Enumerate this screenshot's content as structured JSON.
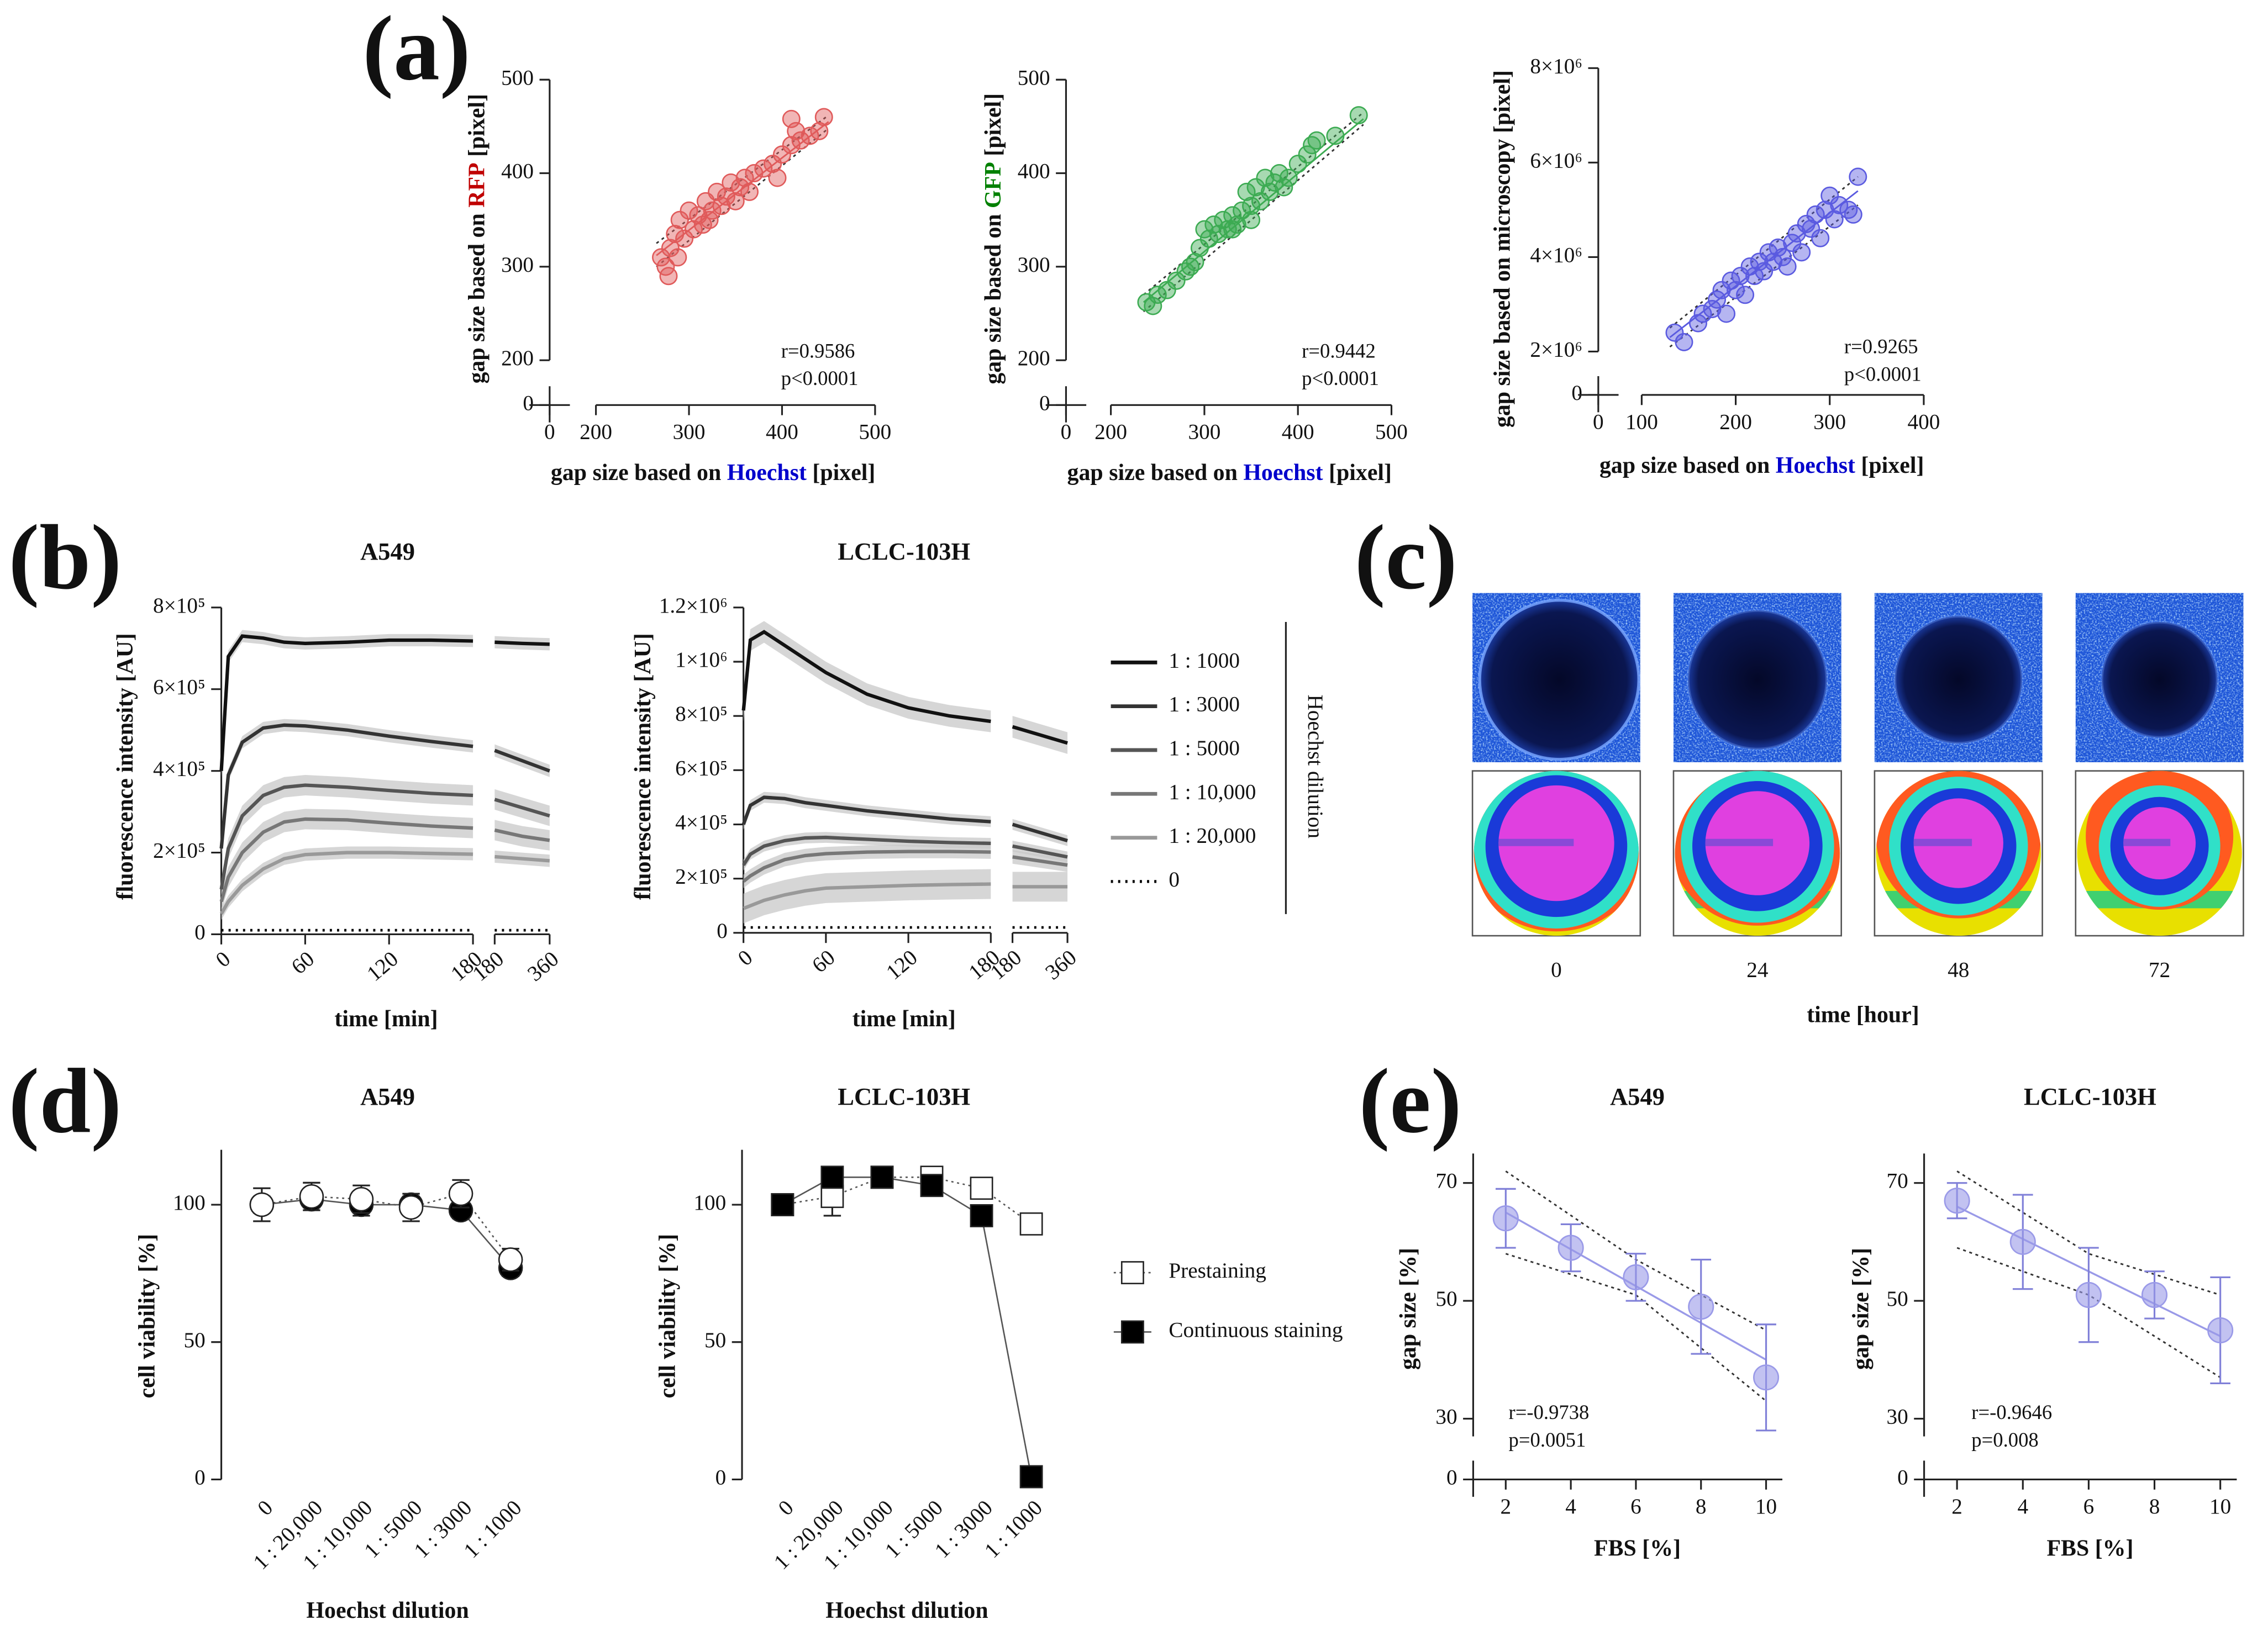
{
  "panel_labels": [
    "(a)",
    "(b)",
    "(c)",
    "(d)",
    "(e)"
  ],
  "panel_c": {
    "timepoints": [
      0,
      24,
      48,
      72
    ],
    "xlabel": "time [hour]"
  },
  "chart_data": [
    {
      "type": "scatter",
      "ylabel": [
        {
          "text": "gap size based on "
        },
        {
          "text": "RFP",
          "color": "#c00000"
        },
        {
          "text": " [pixel]"
        }
      ],
      "xlabel": [
        {
          "text": "gap size based on "
        },
        {
          "text": "Hoechst",
          "color": "#0000cc"
        },
        {
          "text": " [pixel]"
        }
      ],
      "xlim": [
        0,
        500
      ],
      "xbreak": 200,
      "xticks": [
        0,
        200,
        300,
        400,
        500
      ],
      "ylim": [
        0,
        500
      ],
      "ybreak": 200,
      "yticks": [
        0,
        200,
        300,
        400,
        500
      ],
      "color": "#e05a5a",
      "points": {
        "x": [
          270,
          275,
          278,
          280,
          285,
          288,
          290,
          295,
          300,
          305,
          310,
          315,
          318,
          322,
          325,
          330,
          335,
          340,
          345,
          350,
          355,
          360,
          365,
          370,
          380,
          390,
          395,
          400,
          410,
          415,
          420,
          430,
          440,
          445,
          410
        ],
        "y": [
          310,
          300,
          290,
          320,
          335,
          310,
          350,
          330,
          360,
          340,
          355,
          345,
          370,
          350,
          360,
          380,
          365,
          375,
          390,
          370,
          385,
          395,
          380,
          400,
          405,
          410,
          395,
          420,
          430,
          445,
          435,
          440,
          445,
          460,
          458
        ]
      },
      "fit": {
        "x": [
          265,
          450
        ],
        "y": [
          312,
          455
        ]
      },
      "ci_upper": {
        "x": [
          265,
          450
        ],
        "y": [
          325,
          462
        ]
      },
      "ci_lower": {
        "x": [
          265,
          450
        ],
        "y": [
          300,
          448
        ]
      },
      "annotation": [
        "r=0.9586",
        "p<0.0001"
      ]
    },
    {
      "type": "scatter",
      "ylabel": [
        {
          "text": "gap size based on "
        },
        {
          "text": "GFP",
          "color": "#008000"
        },
        {
          "text": " [pixel]"
        }
      ],
      "xlabel": [
        {
          "text": "gap size based on "
        },
        {
          "text": "Hoechst",
          "color": "#0000cc"
        },
        {
          "text": " [pixel]"
        }
      ],
      "xlim": [
        0,
        500
      ],
      "xbreak": 200,
      "xticks": [
        0,
        200,
        300,
        400,
        500
      ],
      "ylim": [
        0,
        500
      ],
      "ybreak": 200,
      "yticks": [
        0,
        200,
        300,
        400,
        500
      ],
      "color": "#3cab52",
      "points": {
        "x": [
          238,
          245,
          250,
          260,
          270,
          280,
          285,
          290,
          295,
          300,
          305,
          310,
          315,
          320,
          325,
          330,
          335,
          340,
          345,
          350,
          355,
          360,
          365,
          370,
          375,
          380,
          385,
          390,
          400,
          410,
          415,
          420,
          440,
          465,
          330,
          350
        ],
        "y": [
          262,
          258,
          270,
          275,
          285,
          295,
          300,
          305,
          320,
          340,
          330,
          345,
          335,
          350,
          340,
          355,
          345,
          360,
          380,
          365,
          385,
          370,
          395,
          380,
          390,
          400,
          385,
          395,
          410,
          420,
          430,
          435,
          440,
          462,
          340,
          350
        ]
      },
      "fit": {
        "x": [
          235,
          470
        ],
        "y": [
          262,
          458
        ]
      },
      "ci_upper": {
        "x": [
          235,
          470
        ],
        "y": [
          270,
          465
        ]
      },
      "ci_lower": {
        "x": [
          235,
          470
        ],
        "y": [
          252,
          452
        ]
      },
      "annotation": [
        "r=0.9442",
        "p<0.0001"
      ]
    },
    {
      "type": "scatter",
      "ylabel": [
        {
          "text": "gap size based on microscopy [pixel]"
        }
      ],
      "xlabel": [
        {
          "text": "gap size based on "
        },
        {
          "text": "Hoechst",
          "color": "#0000cc"
        },
        {
          "text": " [pixel]"
        }
      ],
      "xlim": [
        0,
        400
      ],
      "xbreak": 100,
      "xticks": [
        0,
        100,
        200,
        300,
        400
      ],
      "ylim": [
        0,
        8000000
      ],
      "ybreak": 2000000,
      "yticks": [
        0,
        {
          "value": 2000000,
          "label": "2×10⁶"
        },
        {
          "value": 4000000,
          "label": "4×10⁶"
        },
        {
          "value": 6000000,
          "label": "6×10⁶"
        },
        {
          "value": 8000000,
          "label": "8×10⁶"
        }
      ],
      "color": "#5a5ae0",
      "points": {
        "x": [
          135,
          145,
          160,
          165,
          175,
          180,
          185,
          190,
          195,
          200,
          205,
          210,
          215,
          220,
          225,
          230,
          235,
          240,
          245,
          250,
          255,
          260,
          265,
          270,
          275,
          280,
          285,
          290,
          295,
          300,
          305,
          310,
          320,
          325,
          330
        ],
        "y": [
          2400000,
          2200000,
          2600000,
          2800000,
          2900000,
          3100000,
          3300000,
          2800000,
          3500000,
          3300000,
          3600000,
          3200000,
          3800000,
          3600000,
          3900000,
          3700000,
          4100000,
          3900000,
          4200000,
          4000000,
          3800000,
          4300000,
          4500000,
          4100000,
          4700000,
          4600000,
          4900000,
          4400000,
          5000000,
          5300000,
          4800000,
          5100000,
          5000000,
          4900000,
          5700000
        ]
      },
      "fit": {
        "x": [
          130,
          330
        ],
        "y": [
          2300000,
          5400000
        ]
      },
      "ci_upper": {
        "x": [
          130,
          330
        ],
        "y": [
          2500000,
          5700000
        ]
      },
      "ci_lower": {
        "x": [
          130,
          330
        ],
        "y": [
          2100000,
          5100000
        ]
      },
      "annotation": [
        "r=0.9265",
        "p<0.0001"
      ]
    },
    {
      "type": "line",
      "title": "A549",
      "xlabel": "time [min]",
      "ylabel": "fluorescence intensity [AU]",
      "x": [
        0,
        5,
        15,
        30,
        45,
        60,
        90,
        120,
        150,
        180
      ],
      "x2": [
        180,
        270,
        360
      ],
      "xlim": [
        0,
        180
      ],
      "xticks": [
        0,
        60,
        120,
        180
      ],
      "x2lim": [
        180,
        360
      ],
      "x2ticks": [
        180,
        360
      ],
      "ylim": [
        0,
        800000
      ],
      "yticks": [
        0,
        {
          "value": 200000,
          "label": "2×10⁵"
        },
        {
          "value": 400000,
          "label": "4×10⁵"
        },
        {
          "value": 600000,
          "label": "6×10⁵"
        },
        {
          "value": 800000,
          "label": "8×10⁵"
        }
      ],
      "series": [
        {
          "color": "#111111",
          "dash": false,
          "band": 15000,
          "values": [
            400000,
            680000,
            730000,
            725000,
            715000,
            712000,
            715000,
            720000,
            720000,
            718000
          ],
          "values2": [
            715000,
            712000,
            710000
          ]
        },
        {
          "color": "#333333",
          "dash": false,
          "band": 15000,
          "values": [
            210000,
            390000,
            470000,
            505000,
            512000,
            510000,
            500000,
            485000,
            472000,
            460000
          ],
          "values2": [
            450000,
            425000,
            400000
          ]
        },
        {
          "color": "#555555",
          "dash": false,
          "band": 25000,
          "values": [
            110000,
            210000,
            290000,
            340000,
            360000,
            365000,
            360000,
            352000,
            345000,
            340000
          ],
          "values2": [
            330000,
            310000,
            290000
          ]
        },
        {
          "color": "#777777",
          "dash": false,
          "band": 25000,
          "values": [
            80000,
            140000,
            200000,
            250000,
            275000,
            282000,
            280000,
            272000,
            265000,
            260000
          ],
          "values2": [
            255000,
            240000,
            230000
          ]
        },
        {
          "color": "#999999",
          "dash": false,
          "band": 15000,
          "values": [
            50000,
            80000,
            120000,
            160000,
            185000,
            195000,
            200000,
            200000,
            198000,
            196000
          ],
          "values2": [
            190000,
            185000,
            180000
          ]
        },
        {
          "color": "#000000",
          "dash": true,
          "values": [
            10000,
            10000,
            10000,
            10000,
            10000,
            10000,
            10000,
            10000,
            10000,
            10000
          ],
          "values2": [
            10000,
            10000,
            10000
          ]
        }
      ]
    },
    {
      "type": "line",
      "title": "LCLC-103H",
      "xlabel": "time [min]",
      "ylabel": "fluorescence intensity [AU]",
      "x": [
        0,
        5,
        15,
        30,
        45,
        60,
        90,
        120,
        150,
        180
      ],
      "x2": [
        180,
        270,
        360
      ],
      "xlim": [
        0,
        180
      ],
      "xticks": [
        0,
        60,
        120,
        180
      ],
      "x2lim": [
        180,
        360
      ],
      "x2ticks": [
        180,
        360
      ],
      "ylim": [
        0,
        1200000
      ],
      "yticks": [
        0,
        {
          "value": 200000,
          "label": "2×10⁵"
        },
        {
          "value": 400000,
          "label": "4×10⁵"
        },
        {
          "value": 600000,
          "label": "6×10⁵"
        },
        {
          "value": 800000,
          "label": "8×10⁵"
        },
        {
          "value": 1000000,
          "label": "1×10⁶"
        },
        {
          "value": 1200000,
          "label": "1.2×10⁶"
        }
      ],
      "legend": "right",
      "legend_title": "Hoechst dilution",
      "series": [
        {
          "name": "1 : 1000",
          "color": "#111111",
          "dash": false,
          "band": 40000,
          "values": [
            820000,
            1080000,
            1110000,
            1060000,
            1010000,
            960000,
            880000,
            830000,
            800000,
            780000
          ],
          "values2": [
            760000,
            730000,
            700000
          ]
        },
        {
          "name": "1 : 3000",
          "color": "#333333",
          "dash": false,
          "band": 20000,
          "values": [
            400000,
            470000,
            500000,
            495000,
            480000,
            470000,
            450000,
            435000,
            420000,
            410000
          ],
          "values2": [
            400000,
            370000,
            340000
          ]
        },
        {
          "name": "1 : 5000",
          "color": "#555555",
          "dash": false,
          "band": 20000,
          "values": [
            250000,
            290000,
            320000,
            340000,
            350000,
            352000,
            345000,
            338000,
            333000,
            330000
          ],
          "values2": [
            320000,
            300000,
            280000
          ]
        },
        {
          "name": "1 : 10,000",
          "color": "#777777",
          "dash": false,
          "band": 25000,
          "values": [
            190000,
            210000,
            240000,
            270000,
            285000,
            292000,
            298000,
            300000,
            300000,
            298000
          ],
          "values2": [
            280000,
            265000,
            250000
          ]
        },
        {
          "name": "1 : 20,000",
          "color": "#999999",
          "dash": false,
          "band": 55000,
          "values": [
            90000,
            100000,
            120000,
            140000,
            155000,
            165000,
            170000,
            175000,
            178000,
            180000
          ],
          "values2": [
            170000,
            170000,
            170000
          ]
        },
        {
          "name": "0",
          "color": "#000000",
          "dash": true,
          "values": [
            20000,
            20000,
            20000,
            20000,
            20000,
            20000,
            20000,
            20000,
            20000,
            20000
          ],
          "values2": [
            20000,
            20000,
            20000
          ]
        }
      ]
    },
    {
      "type": "line",
      "title": "A549",
      "xlabel": "Hoechst dilution",
      "ylabel": "cell viability [%]",
      "categories": [
        "0",
        "1 : 20,000",
        "1 : 10,000",
        "1 : 5000",
        "1 : 3000",
        "1 : 1000"
      ],
      "ylim": [
        0,
        120
      ],
      "yticks": [
        0,
        50,
        100
      ],
      "marker": "circle",
      "series": [
        {
          "color": "#000000",
          "dash": false,
          "values": [
            100,
            102,
            100,
            100,
            98,
            77
          ],
          "errors": [
            3,
            3,
            4,
            3,
            3,
            3
          ]
        },
        {
          "color": "#ffffff",
          "dash": true,
          "values": [
            100,
            103,
            102,
            99,
            104,
            80
          ],
          "errors": [
            6,
            5,
            5,
            5,
            5,
            4
          ]
        }
      ]
    },
    {
      "type": "line",
      "title": "LCLC-103H",
      "xlabel": "Hoechst dilution",
      "ylabel": "cell viability [%]",
      "categories": [
        "0",
        "1 : 20,000",
        "1 : 10,000",
        "1 : 5000",
        "1 : 3000",
        "1 : 1000"
      ],
      "ylim": [
        0,
        120
      ],
      "yticks": [
        0,
        50,
        100
      ],
      "marker": "square",
      "legend": "right",
      "series": [
        {
          "name": "Prestaining",
          "color": "#ffffff",
          "dash": true,
          "values": [
            100,
            103,
            110,
            110,
            106,
            93
          ],
          "errors": [
            2,
            7,
            3,
            2,
            2,
            2
          ]
        },
        {
          "name": "Continuous staining",
          "color": "#000000",
          "dash": false,
          "values": [
            100,
            110,
            110,
            107,
            96,
            1
          ],
          "errors": [
            2,
            2,
            2,
            2,
            2,
            2
          ]
        }
      ]
    },
    {
      "type": "scatter",
      "title": "A549",
      "xlabel": "FBS [%]",
      "ylabel": "gap size [%]",
      "xlim": [
        1,
        10.5
      ],
      "xticks": [
        2,
        4,
        6,
        8,
        10
      ],
      "ylim": [
        0,
        75
      ],
      "ybreak": 27,
      "yticks": [
        0,
        30,
        50,
        70
      ],
      "color": "#9a9ae8",
      "points": {
        "x": [
          2,
          4,
          6,
          8,
          10
        ],
        "y": [
          64,
          59,
          54,
          49,
          37
        ]
      },
      "errors": [
        5,
        4,
        4,
        8,
        9
      ],
      "fit": {
        "x": [
          2,
          10
        ],
        "y": [
          65,
          40
        ]
      },
      "ci_upper": {
        "x": [
          2,
          6,
          10
        ],
        "y": [
          72,
          57,
          45
        ]
      },
      "ci_lower": {
        "x": [
          2,
          6,
          10
        ],
        "y": [
          58,
          51,
          33
        ]
      },
      "annotation": [
        "r=-0.9738",
        "p=0.0051"
      ]
    },
    {
      "type": "scatter",
      "title": "LCLC-103H",
      "xlabel": "FBS [%]",
      "ylabel": "gap size [%]",
      "xlim": [
        1,
        10.5
      ],
      "xticks": [
        2,
        4,
        6,
        8,
        10
      ],
      "ylim": [
        0,
        75
      ],
      "ybreak": 27,
      "yticks": [
        0,
        30,
        50,
        70
      ],
      "color": "#9a9ae8",
      "points": {
        "x": [
          2,
          4,
          6,
          8,
          10
        ],
        "y": [
          67,
          60,
          51,
          51,
          45
        ]
      },
      "errors": [
        3,
        8,
        8,
        4,
        9
      ],
      "fit": {
        "x": [
          2,
          10
        ],
        "y": [
          66,
          44
        ]
      },
      "ci_upper": {
        "x": [
          2,
          6,
          10
        ],
        "y": [
          72,
          58,
          51
        ]
      },
      "ci_lower": {
        "x": [
          2,
          6,
          10
        ],
        "y": [
          59,
          51,
          37
        ]
      },
      "annotation": [
        "r=-0.9646",
        "p=0.008"
      ]
    }
  ]
}
